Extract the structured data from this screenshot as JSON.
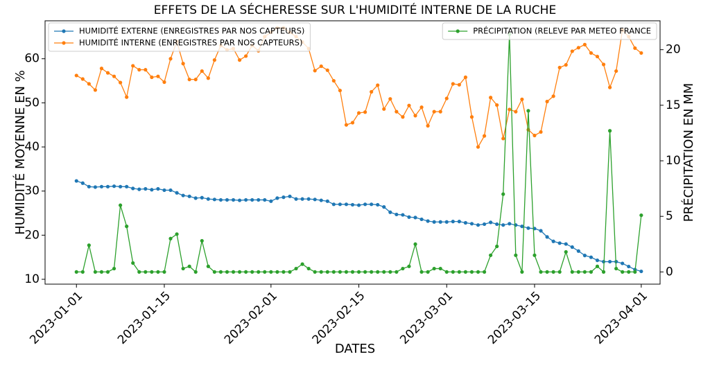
{
  "chart_data": {
    "type": "line",
    "title": "EFFETS DE LA SÉCHERESSE SUR L'HUMIDITÉ INTERNE DE LA RUCHE",
    "xlabel": "DATES",
    "ylabel": "HUMIDITÉ MOYENNE EN %",
    "y2label": "PRÉCIPITATION EN MM",
    "x": [
      "2023-01-01",
      "2023-01-02",
      "2023-01-03",
      "2023-01-04",
      "2023-01-05",
      "2023-01-06",
      "2023-01-07",
      "2023-01-08",
      "2023-01-09",
      "2023-01-10",
      "2023-01-11",
      "2023-01-12",
      "2023-01-13",
      "2023-01-14",
      "2023-01-15",
      "2023-01-16",
      "2023-01-17",
      "2023-01-18",
      "2023-01-19",
      "2023-01-20",
      "2023-01-21",
      "2023-01-22",
      "2023-01-23",
      "2023-01-24",
      "2023-01-25",
      "2023-01-26",
      "2023-01-27",
      "2023-01-28",
      "2023-01-29",
      "2023-01-30",
      "2023-01-31",
      "2023-02-01",
      "2023-02-02",
      "2023-02-03",
      "2023-02-04",
      "2023-02-05",
      "2023-02-06",
      "2023-02-07",
      "2023-02-08",
      "2023-02-09",
      "2023-02-10",
      "2023-02-11",
      "2023-02-12",
      "2023-02-13",
      "2023-02-14",
      "2023-02-15",
      "2023-02-16",
      "2023-02-17",
      "2023-02-18",
      "2023-02-19",
      "2023-02-20",
      "2023-02-21",
      "2023-02-22",
      "2023-02-23",
      "2023-02-24",
      "2023-02-25",
      "2023-02-26",
      "2023-02-27",
      "2023-02-28",
      "2023-03-01",
      "2023-03-02",
      "2023-03-03",
      "2023-03-04",
      "2023-03-05",
      "2023-03-06",
      "2023-03-07",
      "2023-03-08",
      "2023-03-09",
      "2023-03-10",
      "2023-03-11",
      "2023-03-12",
      "2023-03-13",
      "2023-03-14",
      "2023-03-15",
      "2023-03-16",
      "2023-03-17",
      "2023-03-18",
      "2023-03-19",
      "2023-03-20",
      "2023-03-21",
      "2023-03-22",
      "2023-03-23",
      "2023-03-24",
      "2023-03-25",
      "2023-03-26",
      "2023-03-27",
      "2023-03-28",
      "2023-03-29",
      "2023-03-30",
      "2023-03-31",
      "2023-04-01"
    ],
    "xlim": [
      "2022-12-27",
      "2023-04-04"
    ],
    "xticks": [
      "2023-01-01",
      "2023-01-15",
      "2023-02-01",
      "2023-02-15",
      "2023-03-01",
      "2023-03-15",
      "2023-04-01"
    ],
    "ylim": [
      8.9,
      68.6
    ],
    "yticks": [
      10,
      20,
      30,
      40,
      50,
      60
    ],
    "y2lim": [
      -1.1,
      22.6
    ],
    "y2ticks": [
      0,
      5,
      10,
      15,
      20
    ],
    "legend": "upper left",
    "y2legend": "upper right",
    "marker": "o",
    "series": [
      {
        "name": "HUMIDITÉ EXTERNE (ENREGISTRES PAR NOS CAPTEURS)",
        "color": "#1f77b4",
        "values": [
          32.3,
          31.8,
          31,
          30.9,
          31,
          31,
          31.1,
          31,
          31,
          30.6,
          30.4,
          30.5,
          30.3,
          30.5,
          30.2,
          30.2,
          29.6,
          29,
          28.8,
          28.4,
          28.5,
          28.2,
          28.1,
          28,
          28,
          28,
          27.9,
          28,
          28,
          28,
          28,
          27.7,
          28.4,
          28.6,
          28.8,
          28.2,
          28.2,
          28.2,
          28.1,
          27.9,
          27.7,
          27,
          27,
          27,
          26.9,
          26.8,
          27,
          27,
          26.9,
          26.4,
          25.2,
          24.7,
          24.6,
          24.1,
          24,
          23.6,
          23.2,
          23,
          23,
          23,
          23.1,
          23.1,
          22.8,
          22.6,
          22.3,
          22.5,
          22.9,
          22.5,
          22.3,
          22.6,
          22.3,
          22,
          21.6,
          21.5,
          21,
          19.6,
          18.6,
          18.2,
          18,
          17.3,
          16.4,
          15.4,
          15,
          14.3,
          14,
          14,
          14,
          13.6,
          12.9,
          12.2,
          11.8
        ]
      },
      {
        "name": "HUMIDITÉ INTERNE (ENREGISTRES PAR NOS CAPTEURS)",
        "color": "#ff7f0e",
        "values": [
          56.2,
          55.4,
          54.3,
          52.9,
          57.8,
          56.8,
          56,
          54.6,
          51.3,
          58.4,
          57.5,
          57.5,
          55.8,
          56,
          54.7,
          60,
          63.9,
          58.9,
          55.3,
          55.3,
          57.2,
          55.6,
          59.7,
          63,
          62,
          62.3,
          59.7,
          60.6,
          63,
          61.8,
          65,
          66,
          67,
          67,
          66,
          65,
          63.8,
          62.3,
          57.3,
          58.3,
          57.4,
          55,
          52.8,
          45,
          45.5,
          47.7,
          47.9,
          52.5,
          54,
          48.6,
          50.9,
          48,
          46.8,
          49.4,
          47.1,
          49,
          44.8,
          48,
          48,
          51,
          54.3,
          54.1,
          55.8,
          46.8,
          40,
          42.5,
          51.2,
          49.5,
          41.9,
          48.5,
          48,
          50.8,
          43.9,
          42.6,
          43.4,
          50.3,
          51.5,
          58,
          58.6,
          61.7,
          62.5,
          63.2,
          61.3,
          60.5,
          58.7,
          53.5,
          57.2,
          66.5,
          65,
          62.4,
          61.3
        ]
      },
      {
        "name": "PRÉCIPITATION (RELEVE PAR METEO FRANCE",
        "color": "#2ca02c",
        "axis": "y2",
        "values": [
          0,
          0,
          2.4,
          0,
          0,
          0,
          0.3,
          6,
          4.1,
          0.8,
          0,
          0,
          0,
          0,
          0,
          3,
          3.4,
          0.3,
          0.5,
          0,
          2.8,
          0.5,
          0,
          0,
          0,
          0,
          0,
          0,
          0,
          0,
          0,
          0,
          0,
          0,
          0,
          0.3,
          0.7,
          0.3,
          0,
          0,
          0,
          0,
          0,
          0,
          0,
          0,
          0,
          0,
          0,
          0,
          0,
          0,
          0.3,
          0.5,
          2.5,
          0,
          0,
          0.3,
          0.3,
          0,
          0,
          0,
          0,
          0,
          0,
          0,
          1.5,
          2.3,
          7,
          21.4,
          1.5,
          0,
          14.5,
          1.5,
          0,
          0,
          0,
          0,
          1.8,
          0,
          0,
          0,
          0,
          0.5,
          0,
          12.7,
          0.3,
          0,
          0,
          0,
          5.1
        ]
      }
    ]
  }
}
